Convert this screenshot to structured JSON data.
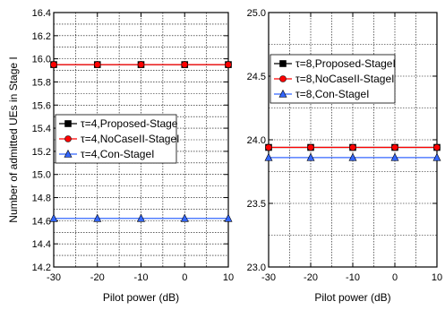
{
  "chart_data": [
    {
      "type": "line",
      "title": "",
      "xlabel": "Pilot power (dB)",
      "ylabel": "Number of admitted UEs in Stage I",
      "xlim": [
        -30,
        10
      ],
      "ylim": [
        14.2,
        16.4
      ],
      "xticks": [
        -30,
        -20,
        -10,
        0,
        10
      ],
      "yticks": [
        14.2,
        14.4,
        14.6,
        14.8,
        15.0,
        15.2,
        15.4,
        15.6,
        15.8,
        16.0,
        16.2,
        16.4
      ],
      "grid": true,
      "legend_position": "middle-left",
      "x": [
        -30,
        -20,
        -10,
        0,
        10
      ],
      "series": [
        {
          "name": "τ=4,Proposed-Stage",
          "values": [
            15.95,
            15.95,
            15.95,
            15.95,
            15.95
          ],
          "color": "#000000",
          "marker": "square"
        },
        {
          "name": "τ=4,NoCaseII-StageI",
          "values": [
            15.95,
            15.95,
            15.95,
            15.95,
            15.95
          ],
          "color": "#ff0000",
          "marker": "circle"
        },
        {
          "name": "τ=4,Con-StageI",
          "values": [
            14.62,
            14.62,
            14.62,
            14.62,
            14.62
          ],
          "color": "#3366ff",
          "marker": "triangle"
        }
      ]
    },
    {
      "type": "line",
      "title": "",
      "xlabel": "Pilot power (dB)",
      "ylabel": "",
      "xlim": [
        -30,
        10
      ],
      "ylim": [
        23.0,
        25.0
      ],
      "xticks": [
        -30,
        -20,
        -10,
        0,
        10
      ],
      "yticks": [
        23.0,
        23.5,
        24.0,
        24.5,
        25.0
      ],
      "grid": true,
      "legend_position": "top-right",
      "x": [
        -30,
        -20,
        -10,
        0,
        10
      ],
      "series": [
        {
          "name": "τ=8,Proposed-StageI",
          "values": [
            23.94,
            23.94,
            23.94,
            23.94,
            23.94
          ],
          "color": "#000000",
          "marker": "square"
        },
        {
          "name": "τ=8,NoCaseII-StageI",
          "values": [
            23.94,
            23.94,
            23.94,
            23.94,
            23.94
          ],
          "color": "#ff0000",
          "marker": "circle"
        },
        {
          "name": "τ=8,Con-StageI",
          "values": [
            23.86,
            23.86,
            23.86,
            23.86,
            23.86
          ],
          "color": "#3366ff",
          "marker": "triangle"
        }
      ]
    }
  ]
}
